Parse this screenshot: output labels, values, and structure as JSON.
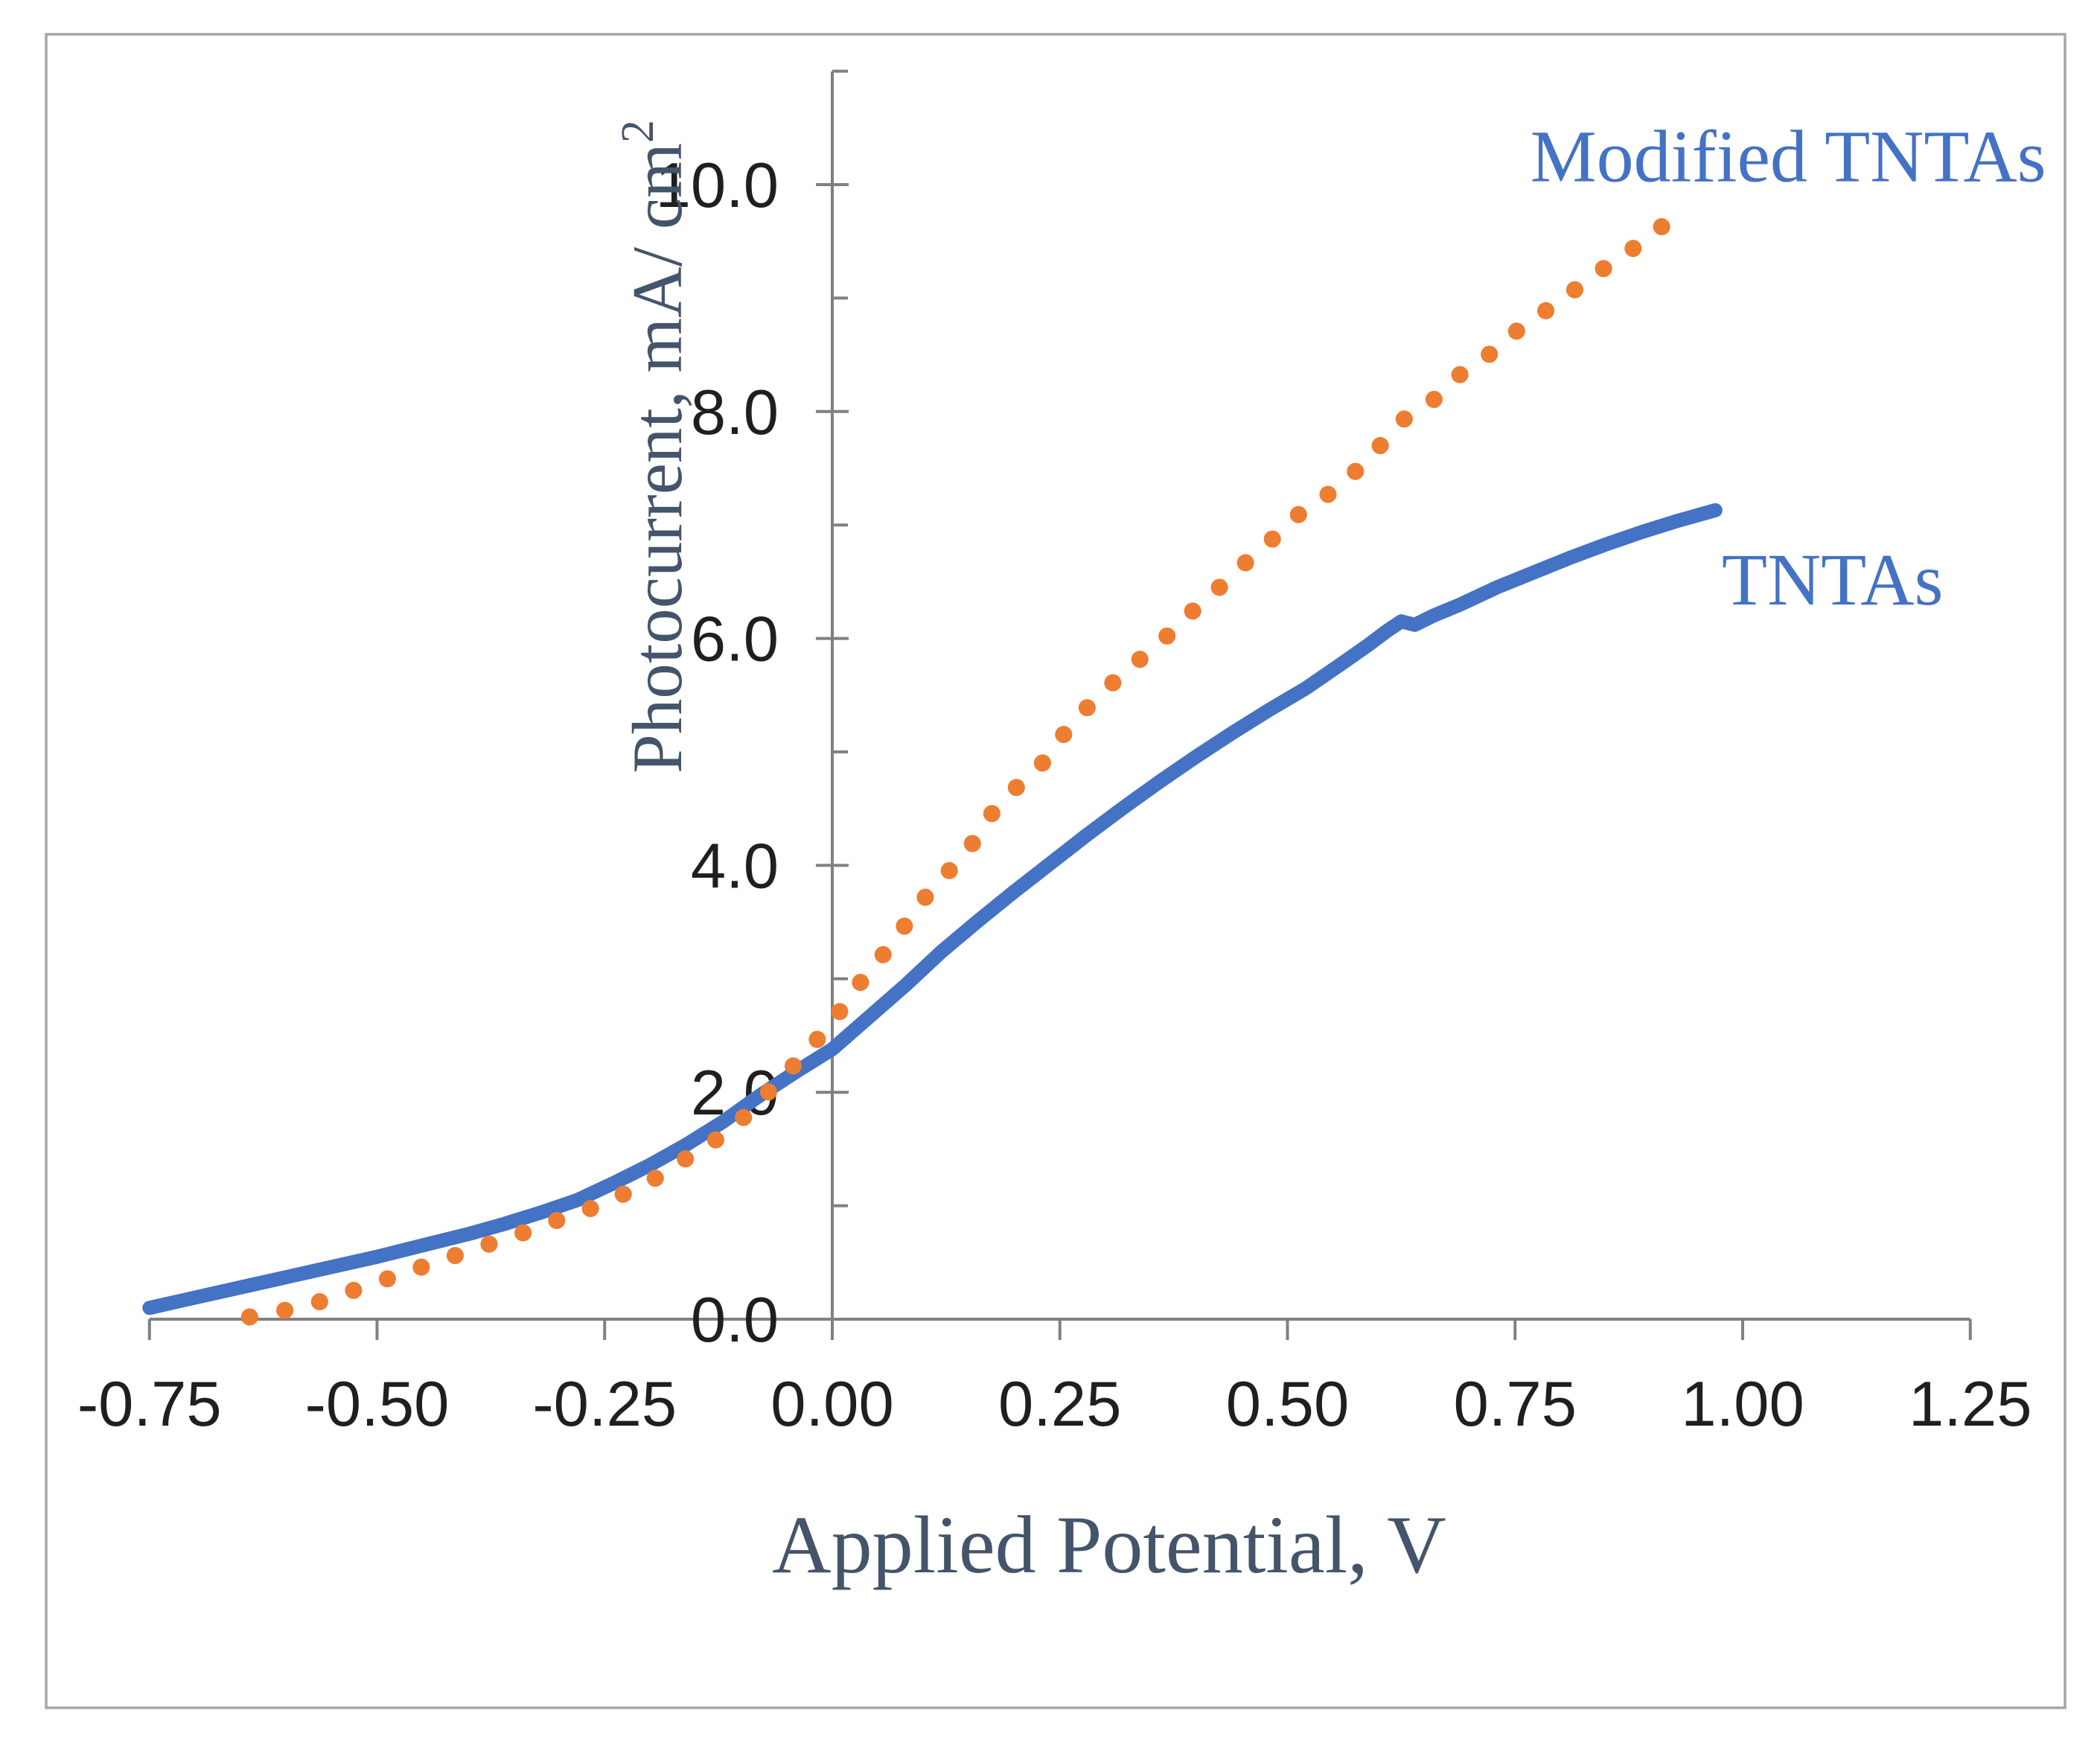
{
  "figure": {
    "background_color": "#FFFFFF",
    "border_color": "#A6A6A6",
    "axis_color": "#808080"
  },
  "text_styles": {
    "tick_label_color": "#1F1F1F",
    "axis_title_color": "#44546A",
    "series_label_color": "#4472C4"
  },
  "chart_data": {
    "type": "line",
    "title": "",
    "xlabel": "Applied Potential, V",
    "ylabel": {
      "text": "Photocurrent, mA/ cm",
      "superscript": "2"
    },
    "grid": false,
    "legend_position": "labels-near-lines",
    "x_axis": {
      "min": -0.75,
      "max": 1.25,
      "ticks": [
        -0.75,
        -0.5,
        -0.25,
        0.0,
        0.25,
        0.5,
        0.75,
        1.0,
        1.25
      ],
      "tick_labels": [
        "-0.75",
        "-0.50",
        "-0.25",
        "0.00",
        "0.25",
        "0.50",
        "0.75",
        "1.00",
        "1.25"
      ]
    },
    "y_axis": {
      "min": 0.0,
      "max": 11.0,
      "ticks": [
        0.0,
        2.0,
        4.0,
        6.0,
        8.0,
        10.0
      ],
      "tick_labels": [
        "0.0",
        "2.0",
        "4.0",
        "6.0",
        "8.0",
        "10.0"
      ],
      "minor_ticks": [
        1.0,
        3.0,
        5.0,
        7.0,
        9.0,
        11.0
      ]
    },
    "series": [
      {
        "name": "TNTAs",
        "style": "solid",
        "color": "#4472C4",
        "stroke_width": 19,
        "label": {
          "text": "TNTAs",
          "x": 0.977,
          "y": 6.3,
          "anchor": "start",
          "color": "#4472C4"
        },
        "points": [
          [
            -0.75,
            0.1
          ],
          [
            -0.7,
            0.19
          ],
          [
            -0.65,
            0.28
          ],
          [
            -0.6,
            0.37
          ],
          [
            -0.55,
            0.46
          ],
          [
            -0.5,
            0.55
          ],
          [
            -0.45,
            0.65
          ],
          [
            -0.4,
            0.75
          ],
          [
            -0.36,
            0.84
          ],
          [
            -0.32,
            0.94
          ],
          [
            -0.28,
            1.05
          ],
          [
            -0.24,
            1.2
          ],
          [
            -0.2,
            1.36
          ],
          [
            -0.16,
            1.54
          ],
          [
            -0.12,
            1.74
          ],
          [
            -0.08,
            1.97
          ],
          [
            -0.04,
            2.18
          ],
          [
            0.0,
            2.38
          ],
          [
            0.04,
            2.66
          ],
          [
            0.08,
            2.94
          ],
          [
            0.12,
            3.24
          ],
          [
            0.16,
            3.51
          ],
          [
            0.2,
            3.77
          ],
          [
            0.24,
            4.02
          ],
          [
            0.28,
            4.27
          ],
          [
            0.32,
            4.51
          ],
          [
            0.36,
            4.74
          ],
          [
            0.4,
            4.96
          ],
          [
            0.44,
            5.17
          ],
          [
            0.48,
            5.37
          ],
          [
            0.52,
            5.56
          ],
          [
            0.56,
            5.78
          ],
          [
            0.59,
            5.95
          ],
          [
            0.61,
            6.07
          ],
          [
            0.625,
            6.15
          ],
          [
            0.64,
            6.12
          ],
          [
            0.66,
            6.2
          ],
          [
            0.69,
            6.3
          ],
          [
            0.73,
            6.45
          ],
          [
            0.77,
            6.58
          ],
          [
            0.81,
            6.71
          ],
          [
            0.85,
            6.83
          ],
          [
            0.89,
            6.94
          ],
          [
            0.93,
            7.04
          ],
          [
            0.97,
            7.13
          ]
        ]
      },
      {
        "name": "Modified TNTAs",
        "style": "dotted",
        "color": "#ED7D31",
        "stroke_width": 23,
        "dot_gap": 48,
        "label": {
          "text": "Modified TNTAs",
          "x": 1.05,
          "y": 10.03,
          "anchor": "middle",
          "color": "#4472C4"
        },
        "points": [
          [
            -0.64,
            0.02
          ],
          [
            -0.6,
            0.08
          ],
          [
            -0.56,
            0.16
          ],
          [
            -0.52,
            0.27
          ],
          [
            -0.48,
            0.38
          ],
          [
            -0.44,
            0.49
          ],
          [
            -0.4,
            0.6
          ],
          [
            -0.37,
            0.68
          ],
          [
            -0.34,
            0.76
          ],
          [
            -0.31,
            0.85
          ],
          [
            -0.27,
            0.96
          ],
          [
            -0.23,
            1.1
          ],
          [
            -0.19,
            1.26
          ],
          [
            -0.16,
            1.42
          ],
          [
            -0.12,
            1.62
          ],
          [
            -0.09,
            1.83
          ],
          [
            -0.06,
            2.09
          ],
          [
            -0.03,
            2.34
          ],
          [
            0.0,
            2.62
          ],
          [
            0.04,
            3.07
          ],
          [
            0.07,
            3.34
          ],
          [
            0.09,
            3.61
          ],
          [
            0.12,
            3.88
          ],
          [
            0.15,
            4.14
          ],
          [
            0.17,
            4.41
          ],
          [
            0.2,
            4.67
          ],
          [
            0.24,
            4.97
          ],
          [
            0.26,
            5.23
          ],
          [
            0.29,
            5.47
          ],
          [
            0.32,
            5.7
          ],
          [
            0.36,
            5.96
          ],
          [
            0.39,
            6.2
          ],
          [
            0.42,
            6.41
          ],
          [
            0.45,
            6.64
          ],
          [
            0.48,
            6.85
          ],
          [
            0.51,
            7.08
          ],
          [
            0.55,
            7.3
          ],
          [
            0.58,
            7.51
          ],
          [
            0.61,
            7.77
          ],
          [
            0.63,
            7.95
          ],
          [
            0.66,
            8.1
          ],
          [
            0.69,
            8.33
          ],
          [
            0.73,
            8.55
          ],
          [
            0.76,
            8.77
          ],
          [
            0.8,
            8.97
          ],
          [
            0.83,
            9.17
          ],
          [
            0.87,
            9.38
          ],
          [
            0.9,
            9.56
          ],
          [
            0.93,
            9.75
          ]
        ]
      }
    ]
  }
}
